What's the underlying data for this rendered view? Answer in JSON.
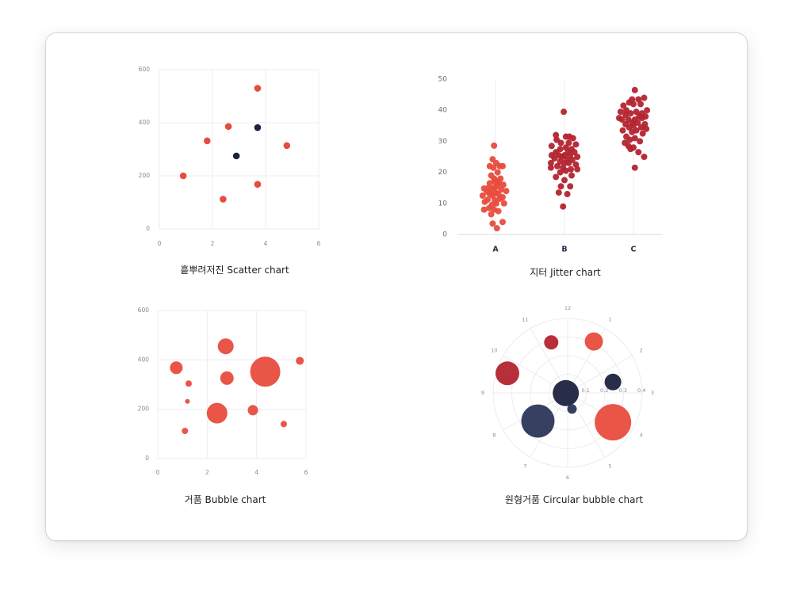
{
  "colors": {
    "red": "#e84c3d",
    "darkred": "#b3242f",
    "navy": "#1c2340",
    "slate": "#2c3658",
    "grid": "#ececf0",
    "tick": "#8a8a94"
  },
  "chart_data": [
    {
      "type": "scatter",
      "caption": "흩뿌려저진 Scatter chart",
      "xlim": [
        0,
        6
      ],
      "ylim": [
        0,
        600
      ],
      "xticks": [
        "0",
        "2",
        "4",
        "6"
      ],
      "yticks": [
        "0",
        "200",
        "400",
        "600"
      ],
      "grid": true,
      "points": [
        {
          "x": 0.9,
          "y": 200,
          "c": "red"
        },
        {
          "x": 1.8,
          "y": 332,
          "c": "red"
        },
        {
          "x": 2.6,
          "y": 386,
          "c": "red"
        },
        {
          "x": 3.7,
          "y": 530,
          "c": "red"
        },
        {
          "x": 4.8,
          "y": 314,
          "c": "red"
        },
        {
          "x": 2.4,
          "y": 112,
          "c": "red"
        },
        {
          "x": 3.7,
          "y": 168,
          "c": "red"
        },
        {
          "x": 3.7,
          "y": 382,
          "c": "navy"
        },
        {
          "x": 2.9,
          "y": 275,
          "c": "navy"
        }
      ]
    },
    {
      "type": "scatter",
      "subtype": "jitter",
      "caption": "지터 Jitter chart",
      "categories": [
        "A",
        "B",
        "C"
      ],
      "ylim": [
        0,
        50
      ],
      "yticks": [
        "0",
        "10",
        "20",
        "30",
        "40",
        "50"
      ],
      "groups": [
        {
          "name": "A",
          "color": "red",
          "points": [
            [
              -0.1,
              28.6
            ],
            [
              -0.2,
              24.2
            ],
            [
              0.05,
              23
            ],
            [
              -0.4,
              22
            ],
            [
              -0.15,
              21.5
            ],
            [
              0.3,
              22
            ],
            [
              0.5,
              22
            ],
            [
              0.15,
              20
            ],
            [
              -0.3,
              19
            ],
            [
              0.35,
              18
            ],
            [
              -0.1,
              18
            ],
            [
              -0.05,
              17
            ],
            [
              0.15,
              17.2
            ],
            [
              -0.4,
              16.5
            ],
            [
              0.25,
              16.5
            ],
            [
              0.55,
              16
            ],
            [
              -0.5,
              15
            ],
            [
              -0.1,
              15
            ],
            [
              0.1,
              15.5
            ],
            [
              -0.8,
              14.8
            ],
            [
              -0.25,
              14.5
            ],
            [
              0.4,
              14.5
            ],
            [
              0.75,
              14
            ],
            [
              -0.6,
              13.8
            ],
            [
              0,
              13.5
            ],
            [
              0.2,
              13
            ],
            [
              -0.4,
              13
            ],
            [
              -0.9,
              12.5
            ],
            [
              -0.2,
              12.5
            ],
            [
              0.5,
              12
            ],
            [
              0.3,
              11.5
            ],
            [
              -0.55,
              11.2
            ],
            [
              -0.05,
              11
            ],
            [
              -0.75,
              10.5
            ],
            [
              0.05,
              10
            ],
            [
              -0.25,
              9.5
            ],
            [
              0.6,
              10
            ],
            [
              -0.45,
              8.5
            ],
            [
              -0.1,
              8
            ],
            [
              -0.8,
              8
            ],
            [
              0.2,
              7.5
            ],
            [
              -0.3,
              6.5
            ],
            [
              0.5,
              4
            ],
            [
              -0.2,
              3.5
            ],
            [
              0.1,
              2
            ]
          ]
        },
        {
          "name": "B",
          "color": "darkred",
          "points": [
            [
              -0.05,
              39.5
            ],
            [
              -0.6,
              32
            ],
            [
              0.1,
              31.5
            ],
            [
              0.35,
              31.5
            ],
            [
              0.6,
              31
            ],
            [
              -0.55,
              30.5
            ],
            [
              -0.25,
              29.5
            ],
            [
              0.3,
              29.5
            ],
            [
              0.8,
              29
            ],
            [
              -0.9,
              28.5
            ],
            [
              0.1,
              28
            ],
            [
              -0.3,
              27.5
            ],
            [
              0.5,
              27.5
            ],
            [
              -0.6,
              26.5
            ],
            [
              0.25,
              26.5
            ],
            [
              0.7,
              26.5
            ],
            [
              -0.9,
              25.5
            ],
            [
              -0.4,
              25.5
            ],
            [
              0.0,
              25.5
            ],
            [
              0.4,
              25.5
            ],
            [
              -0.15,
              25
            ],
            [
              0.9,
              25
            ],
            [
              -0.7,
              24.5
            ],
            [
              0.2,
              24
            ],
            [
              -0.3,
              23.5
            ],
            [
              0.55,
              24
            ],
            [
              -0.95,
              23
            ],
            [
              0.0,
              23
            ],
            [
              0.3,
              23
            ],
            [
              0.8,
              22.5
            ],
            [
              -0.5,
              22
            ],
            [
              -0.1,
              21.5
            ],
            [
              0.45,
              21
            ],
            [
              0.9,
              21
            ],
            [
              -0.95,
              21.5
            ],
            [
              -0.3,
              20
            ],
            [
              0.1,
              20.5
            ],
            [
              -0.6,
              18.5
            ],
            [
              0.5,
              19
            ],
            [
              0.0,
              17.5
            ],
            [
              -0.25,
              15.5
            ],
            [
              0.4,
              15.5
            ],
            [
              -0.4,
              13.5
            ],
            [
              0.2,
              13
            ],
            [
              -0.1,
              9
            ]
          ]
        },
        {
          "name": "C",
          "color": "darkred",
          "points": [
            [
              0.1,
              46.5
            ],
            [
              -0.1,
              43.5
            ],
            [
              0.35,
              43.5
            ],
            [
              0.75,
              44
            ],
            [
              -0.3,
              42.5
            ],
            [
              0.5,
              42
            ],
            [
              0.0,
              42
            ],
            [
              -0.7,
              41.5
            ],
            [
              0.95,
              40
            ],
            [
              -0.5,
              40
            ],
            [
              0.2,
              39.5
            ],
            [
              -0.9,
              39.5
            ],
            [
              0.6,
              39
            ],
            [
              -0.2,
              39
            ],
            [
              -0.55,
              38.5
            ],
            [
              0.4,
              38
            ],
            [
              0.85,
              38
            ],
            [
              -1.0,
              37.5
            ],
            [
              -0.35,
              37
            ],
            [
              0.1,
              37
            ],
            [
              0.6,
              37.5
            ],
            [
              -0.8,
              37
            ],
            [
              -0.1,
              36
            ],
            [
              0.3,
              36
            ],
            [
              0.8,
              35.5
            ],
            [
              -0.55,
              35.5
            ],
            [
              0.0,
              35
            ],
            [
              -0.3,
              34.5
            ],
            [
              0.55,
              34.5
            ],
            [
              0.9,
              34
            ],
            [
              -0.75,
              33.5
            ],
            [
              0.2,
              33.5
            ],
            [
              -0.1,
              33
            ],
            [
              0.65,
              32.5
            ],
            [
              -0.5,
              31.5
            ],
            [
              0.1,
              31
            ],
            [
              -0.25,
              30.5
            ],
            [
              0.45,
              30
            ],
            [
              -0.6,
              29.5
            ],
            [
              -0.35,
              28.5
            ],
            [
              0.0,
              28
            ],
            [
              -0.2,
              27.5
            ],
            [
              0.35,
              26.5
            ],
            [
              0.75,
              25
            ],
            [
              0.1,
              21.5
            ]
          ]
        }
      ]
    },
    {
      "type": "scatter",
      "subtype": "bubble",
      "caption": "거품 Bubble chart",
      "xlim": [
        0,
        6
      ],
      "ylim": [
        0,
        600
      ],
      "xticks": [
        "0",
        "2",
        "4",
        "6"
      ],
      "yticks": [
        "0",
        "200",
        "400",
        "600"
      ],
      "grid": true,
      "bubbles": [
        {
          "x": 2.75,
          "y": 455,
          "s": 10
        },
        {
          "x": 0.75,
          "y": 368,
          "s": 8
        },
        {
          "x": 4.35,
          "y": 352,
          "s": 19
        },
        {
          "x": 5.75,
          "y": 396,
          "s": 5
        },
        {
          "x": 2.8,
          "y": 326,
          "s": 8.5
        },
        {
          "x": 1.25,
          "y": 304,
          "s": 4
        },
        {
          "x": 1.2,
          "y": 232,
          "s": 3
        },
        {
          "x": 2.4,
          "y": 184,
          "s": 13
        },
        {
          "x": 3.85,
          "y": 196,
          "s": 6.5
        },
        {
          "x": 1.1,
          "y": 112,
          "s": 4
        },
        {
          "x": 5.1,
          "y": 140,
          "s": 4
        }
      ]
    },
    {
      "type": "scatter",
      "subtype": "polar-bubble",
      "caption": "원형거품 Circular bubble chart",
      "angle_labels": [
        "12",
        "1",
        "2",
        "3",
        "4",
        "5",
        "6",
        "7",
        "8",
        "9",
        "10",
        "11"
      ],
      "radial_ticks": [
        "0.1",
        "0.2",
        "0.3",
        "0.4"
      ],
      "rmax": 0.4,
      "bubbles": [
        {
          "hour": 11.4,
          "r": 0.285,
          "s": 9,
          "c": "darkred"
        },
        {
          "hour": 0.9,
          "r": 0.31,
          "s": 11.5,
          "c": "red"
        },
        {
          "hour": 2.55,
          "r": 0.25,
          "s": 10.5,
          "c": "navy"
        },
        {
          "hour": 9.6,
          "r": 0.34,
          "s": 15,
          "c": "darkred"
        },
        {
          "hour": 8.75,
          "r": 0.01,
          "s": 16.5,
          "c": "navy"
        },
        {
          "hour": 4.1,
          "r": 0.29,
          "s": 23,
          "c": "red"
        },
        {
          "hour": 7.55,
          "r": 0.22,
          "s": 21,
          "c": "slate"
        },
        {
          "hour": 5.5,
          "r": 0.09,
          "s": 6,
          "c": "slate"
        }
      ]
    }
  ]
}
